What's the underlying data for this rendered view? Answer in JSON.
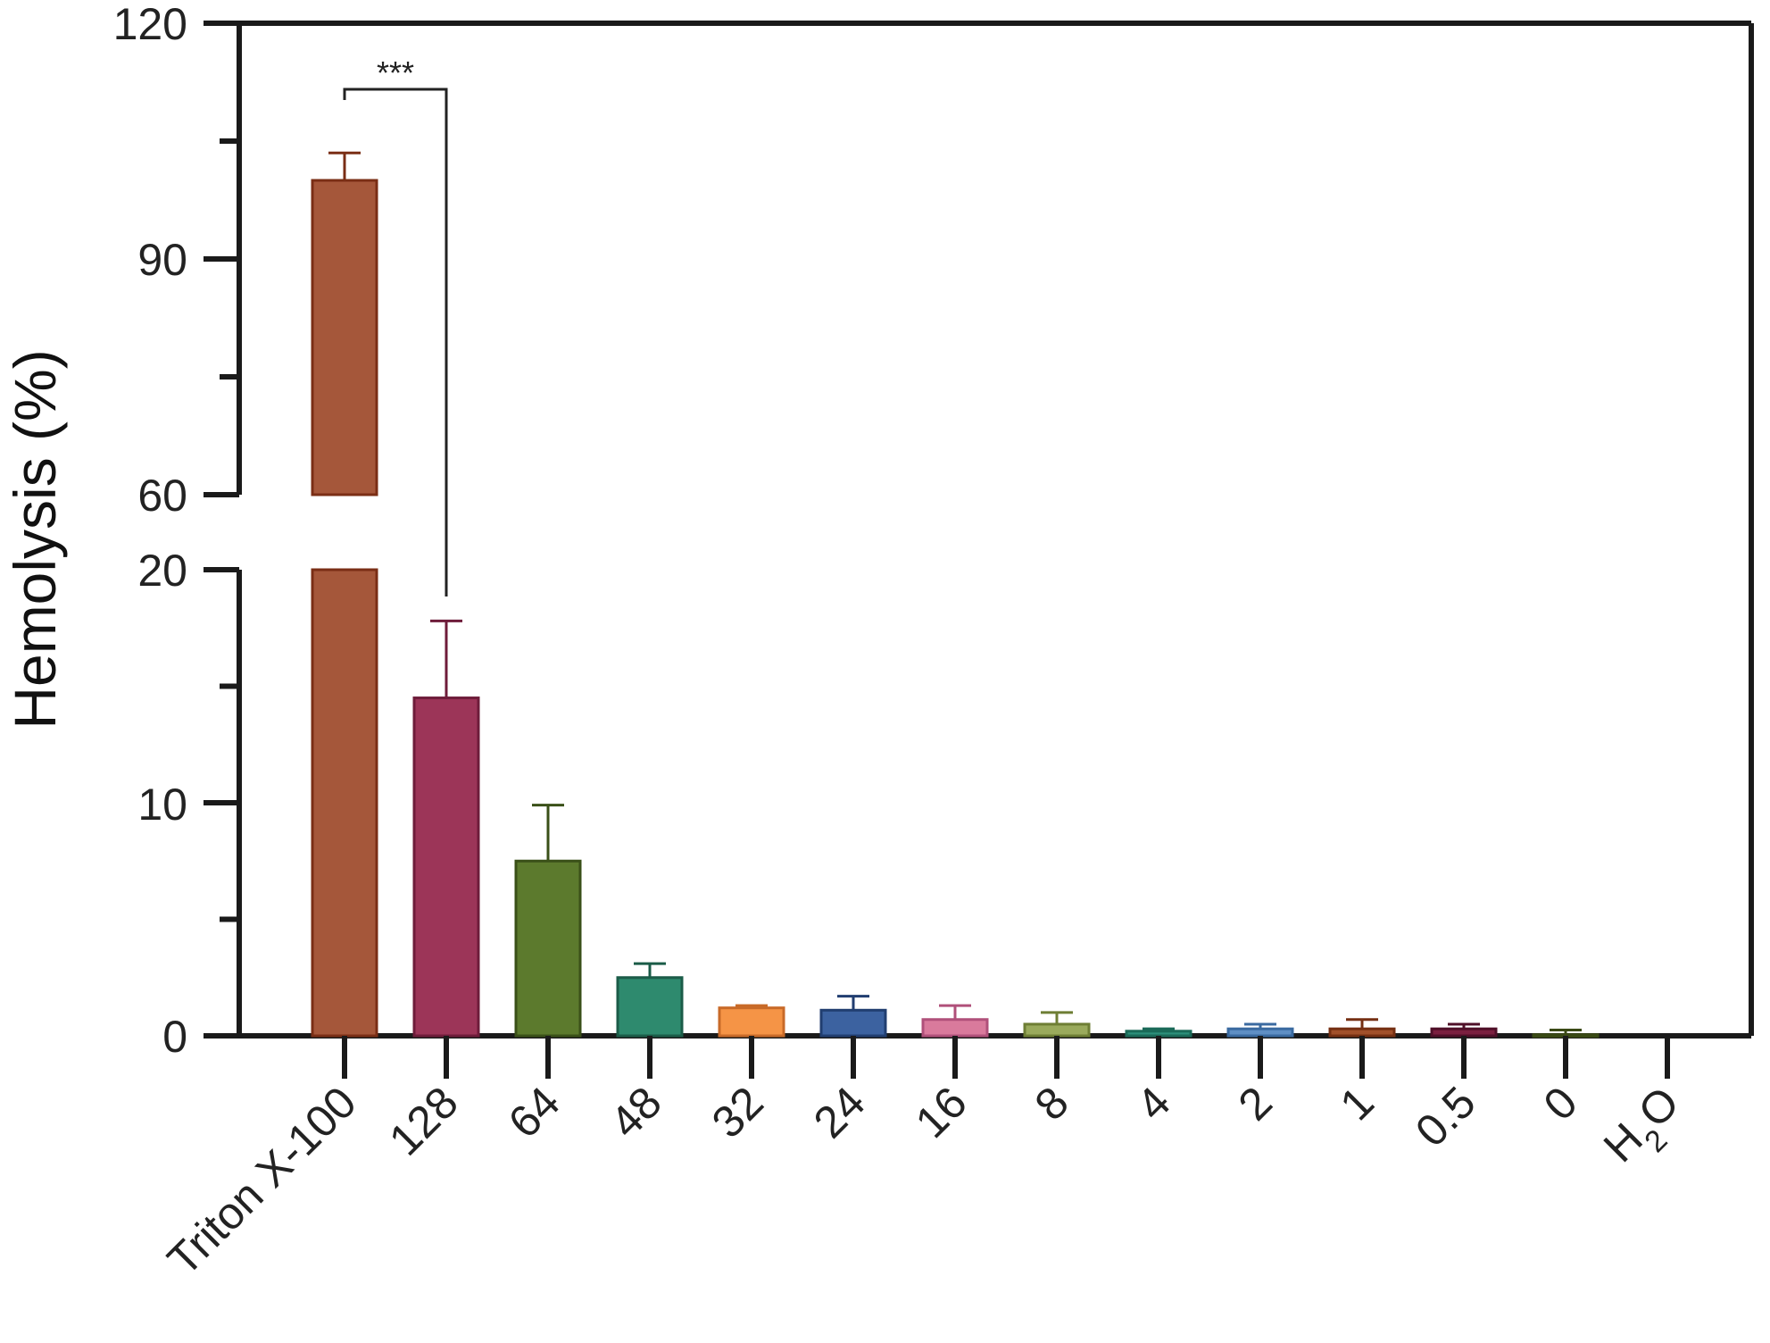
{
  "chart_data": {
    "type": "bar",
    "ylabel": "Hemolysis (%)",
    "xlabel": "",
    "title": "",
    "categories": [
      "Triton X-100",
      "128",
      "64",
      "48",
      "32",
      "24",
      "16",
      "8",
      "4",
      "2",
      "1",
      "0.5",
      "0",
      "H2O"
    ],
    "values": [
      100,
      14.5,
      7.5,
      2.5,
      1.2,
      1.1,
      0.7,
      0.5,
      0.2,
      0.3,
      0.3,
      0.3,
      0.05,
      0
    ],
    "errors": [
      3.5,
      3.3,
      2.4,
      0.6,
      0.1,
      0.6,
      0.6,
      0.5,
      0.1,
      0.2,
      0.4,
      0.2,
      0.2,
      0
    ],
    "colors": [
      "#a5573a",
      "#9c3558",
      "#5c7a2d",
      "#2e8a6e",
      "#f59446",
      "#3c62a0",
      "#d97a9c",
      "#9aaa5c",
      "#2c8f7a",
      "#5f8fc4",
      "#a1502a",
      "#7a1f3f",
      "#5a6a2a",
      "#cccccc"
    ],
    "edge_colors": [
      "#7a2e15",
      "#6e1c3a",
      "#3a5018",
      "#1b5c48",
      "#c86a28",
      "#213e70",
      "#b0507a",
      "#6e7e34",
      "#1a6a58",
      "#3a6aa0",
      "#752f12",
      "#4f0f28",
      "#3a4a15",
      "#999999"
    ],
    "y_axis_broken": true,
    "y_lower_range": [
      0,
      20
    ],
    "y_upper_range": [
      60,
      120
    ],
    "y_ticks_lower": [
      "0",
      "10",
      "20"
    ],
    "y_ticks_upper": [
      "60",
      "90",
      "120"
    ],
    "significance": {
      "from": "Triton X-100",
      "to": "128",
      "label": "***"
    },
    "grid": false
  }
}
